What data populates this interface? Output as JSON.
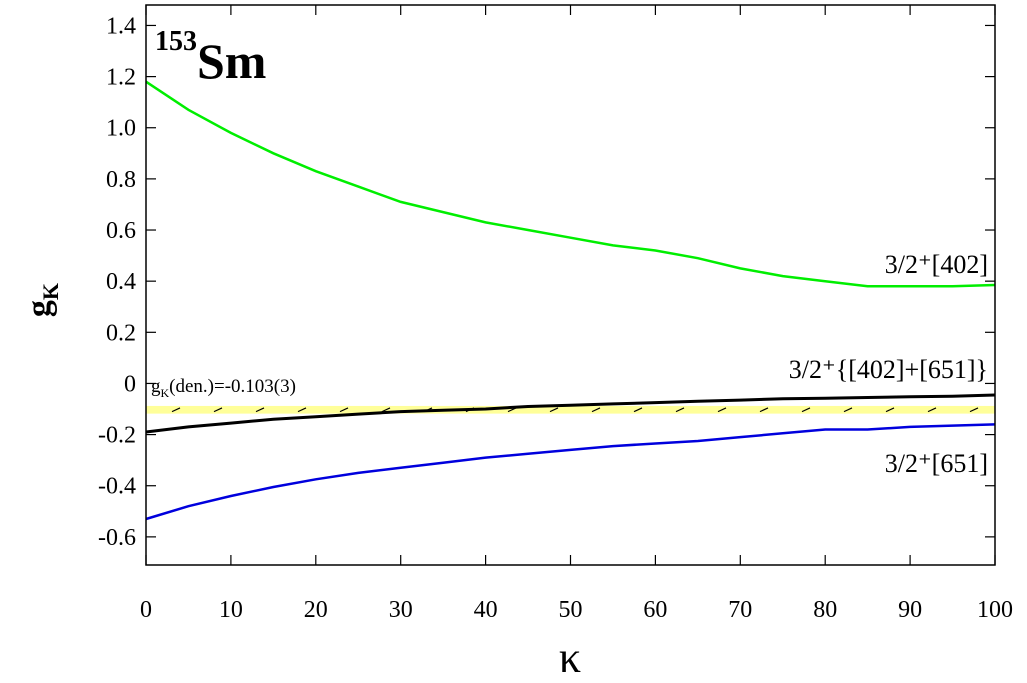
{
  "chart_data": {
    "type": "line",
    "isotope": {
      "mass": "153",
      "symbol": "Sm"
    },
    "xlabel": "κ",
    "ylabel": "g",
    "ylabel_sub": "K",
    "x": [
      0,
      5,
      10,
      15,
      20,
      25,
      30,
      35,
      40,
      45,
      50,
      55,
      60,
      65,
      70,
      75,
      80,
      85,
      90,
      95,
      100
    ],
    "xlim": [
      0,
      100
    ],
    "ylim": [
      -0.71,
      1.48
    ],
    "xticks": [
      0,
      10,
      20,
      30,
      40,
      50,
      60,
      70,
      80,
      90,
      100
    ],
    "yticks": [
      -0.6,
      -0.4,
      -0.2,
      0,
      0.2,
      0.4,
      0.6,
      0.8,
      {
        "value": 1,
        "label": "1.0"
      },
      1.2,
      1.4
    ],
    "series": [
      {
        "name": "3/2⁺[402]",
        "color": "#00ee00",
        "values": [
          1.18,
          1.07,
          0.98,
          0.9,
          0.83,
          0.77,
          0.71,
          0.67,
          0.63,
          0.6,
          0.57,
          0.54,
          0.52,
          0.49,
          0.45,
          0.42,
          0.4,
          0.38,
          0.38,
          0.38,
          0.385
        ]
      },
      {
        "name": "3/2⁺{[402]+[651]}",
        "color": "#000000",
        "values": [
          -0.19,
          -0.17,
          -0.155,
          -0.14,
          -0.13,
          -0.12,
          -0.11,
          -0.105,
          -0.1,
          -0.09,
          -0.085,
          -0.08,
          -0.075,
          -0.07,
          -0.065,
          -0.06,
          -0.058,
          -0.055,
          -0.052,
          -0.05,
          -0.045
        ]
      },
      {
        "name": "3/2⁺[651]",
        "color": "#0000dd",
        "values": [
          -0.53,
          -0.48,
          -0.44,
          -0.405,
          -0.375,
          -0.35,
          -0.33,
          -0.31,
          -0.29,
          -0.275,
          -0.26,
          -0.245,
          -0.235,
          -0.225,
          -0.21,
          -0.195,
          -0.18,
          -0.18,
          -0.17,
          -0.165,
          -0.16
        ]
      }
    ],
    "band": {
      "range": [
        -0.118,
        -0.088
      ],
      "color": "#ffff99",
      "label_g": "g",
      "label_sub": "K",
      "label_rest": "(den.)=-0.103(3)"
    }
  }
}
